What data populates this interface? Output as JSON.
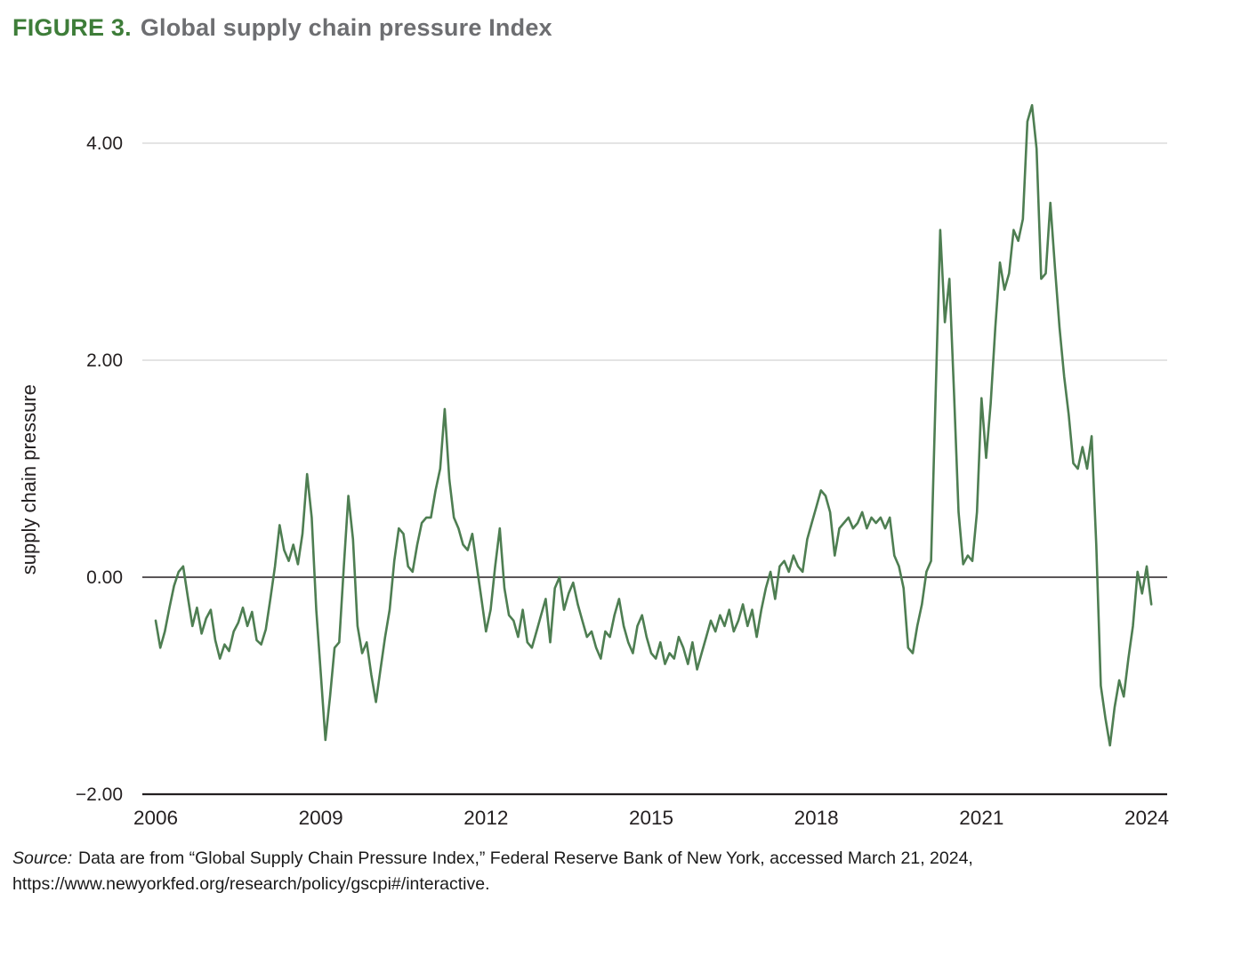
{
  "figure": {
    "label": "FIGURE 3.",
    "title": "Global supply chain pressure Index"
  },
  "source": {
    "prefix": "Source:",
    "text": "Data are from “Global Supply Chain Pressure Index,” Federal Reserve Bank of New York, accessed March 21, 2024,",
    "line2": "https://www.newyorkfed.org/research/policy/gscpi#/interactive."
  },
  "colors": {
    "accent_green": "#3e7d39",
    "line_green": "#4e7e52",
    "title_gray": "#6d6e71",
    "grid_gray": "#dcdcdc",
    "axis_black": "#231f20",
    "text_black": "#231f20"
  },
  "chart_data": {
    "type": "line",
    "title": "Global supply chain pressure Index",
    "xlabel": "",
    "ylabel": "supply chain pressure",
    "x_start_year": 2006,
    "x_frequency": "monthly",
    "x_ticks": [
      2006,
      2009,
      2012,
      2015,
      2018,
      2021,
      2024
    ],
    "y_ticks": [
      {
        "value": 4,
        "label": "4.00"
      },
      {
        "value": 2,
        "label": "2.00"
      },
      {
        "value": 0,
        "label": "0.00"
      },
      {
        "value": -2,
        "label": "−2.00"
      }
    ],
    "ylim": [
      -2,
      4.5
    ],
    "grid_values": [
      4,
      2
    ],
    "zero_line": true,
    "legend": "none",
    "series": [
      {
        "name": "Global Supply Chain Pressure Index",
        "values": [
          -0.4,
          -0.65,
          -0.5,
          -0.28,
          -0.08,
          0.05,
          0.1,
          -0.18,
          -0.45,
          -0.28,
          -0.52,
          -0.38,
          -0.3,
          -0.58,
          -0.75,
          -0.62,
          -0.68,
          -0.5,
          -0.42,
          -0.28,
          -0.45,
          -0.32,
          -0.58,
          -0.62,
          -0.48,
          -0.2,
          0.1,
          0.48,
          0.25,
          0.15,
          0.3,
          0.12,
          0.4,
          0.95,
          0.55,
          -0.3,
          -0.9,
          -1.5,
          -1.1,
          -0.65,
          -0.6,
          0.1,
          0.75,
          0.35,
          -0.45,
          -0.7,
          -0.6,
          -0.9,
          -1.15,
          -0.85,
          -0.55,
          -0.3,
          0.15,
          0.45,
          0.4,
          0.1,
          0.05,
          0.3,
          0.5,
          0.55,
          0.55,
          0.8,
          1.0,
          1.55,
          0.9,
          0.55,
          0.45,
          0.3,
          0.25,
          0.4,
          0.1,
          -0.2,
          -0.5,
          -0.3,
          0.1,
          0.45,
          -0.1,
          -0.35,
          -0.4,
          -0.55,
          -0.3,
          -0.6,
          -0.65,
          -0.5,
          -0.35,
          -0.2,
          -0.6,
          -0.1,
          0.0,
          -0.3,
          -0.15,
          -0.05,
          -0.25,
          -0.4,
          -0.55,
          -0.5,
          -0.65,
          -0.75,
          -0.5,
          -0.55,
          -0.35,
          -0.2,
          -0.45,
          -0.6,
          -0.7,
          -0.45,
          -0.35,
          -0.55,
          -0.7,
          -0.75,
          -0.6,
          -0.8,
          -0.7,
          -0.75,
          -0.55,
          -0.65,
          -0.8,
          -0.6,
          -0.85,
          -0.7,
          -0.55,
          -0.4,
          -0.5,
          -0.35,
          -0.45,
          -0.3,
          -0.5,
          -0.4,
          -0.25,
          -0.45,
          -0.3,
          -0.55,
          -0.3,
          -0.1,
          0.05,
          -0.2,
          0.1,
          0.15,
          0.05,
          0.2,
          0.1,
          0.05,
          0.35,
          0.5,
          0.65,
          0.8,
          0.75,
          0.6,
          0.2,
          0.45,
          0.5,
          0.55,
          0.45,
          0.5,
          0.6,
          0.45,
          0.55,
          0.5,
          0.55,
          0.45,
          0.55,
          0.2,
          0.1,
          -0.1,
          -0.65,
          -0.7,
          -0.45,
          -0.25,
          0.05,
          0.15,
          1.7,
          3.2,
          2.35,
          2.75,
          1.7,
          0.6,
          0.12,
          0.2,
          0.15,
          0.6,
          1.65,
          1.1,
          1.6,
          2.3,
          2.9,
          2.65,
          2.8,
          3.2,
          3.1,
          3.3,
          4.2,
          4.35,
          3.95,
          2.75,
          2.8,
          3.45,
          2.85,
          2.3,
          1.85,
          1.5,
          1.05,
          1.0,
          1.2,
          1.0,
          1.3,
          0.3,
          -1.0,
          -1.3,
          -1.55,
          -1.2,
          -0.95,
          -1.1,
          -0.75,
          -0.45,
          0.05,
          -0.15,
          0.1,
          -0.25
        ]
      }
    ]
  }
}
